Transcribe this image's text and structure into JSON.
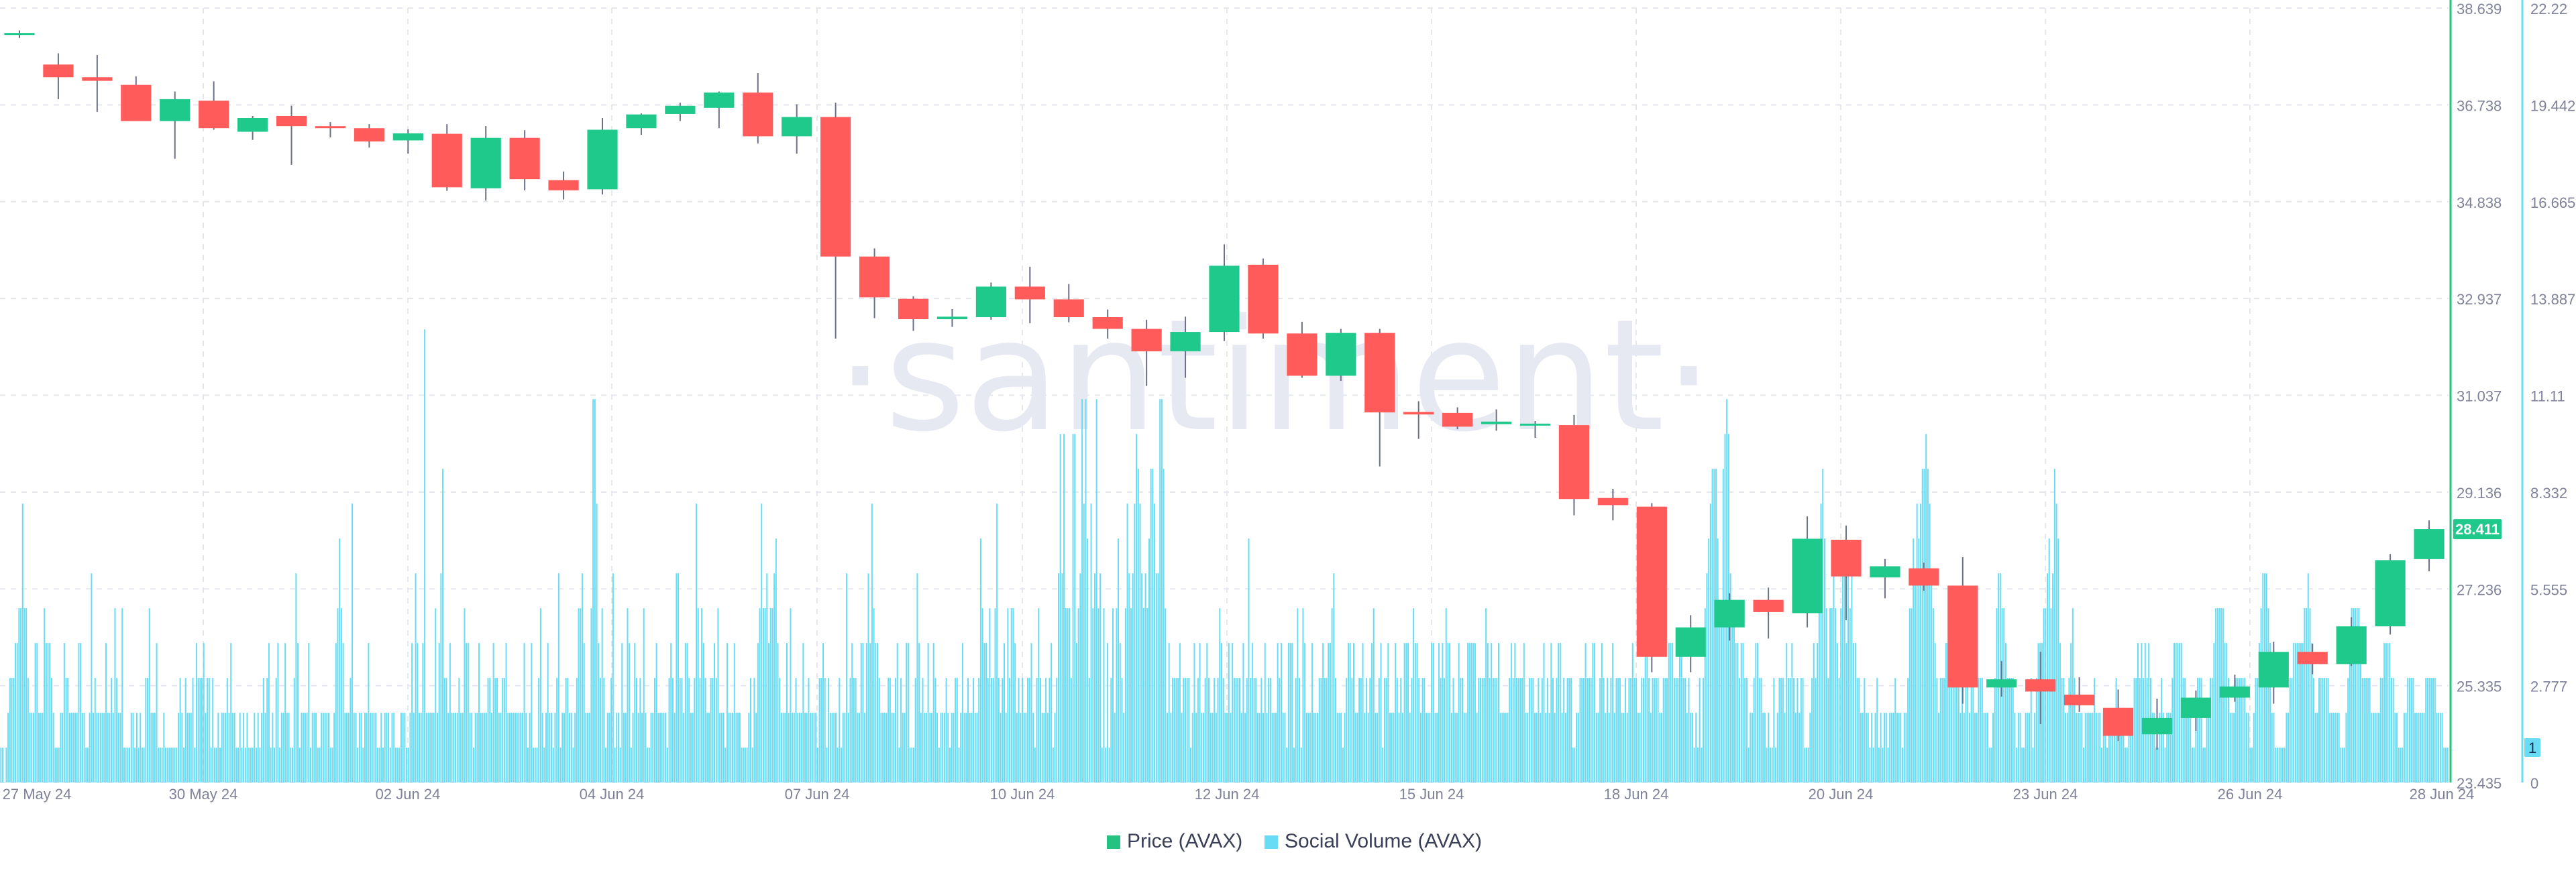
{
  "watermark": "·santiment·",
  "chart_data": {
    "type": "candlestick+bar",
    "price_axis": {
      "ticks": [
        "38.639",
        "36.738",
        "34.838",
        "32.937",
        "31.037",
        "29.136",
        "27.236",
        "25.335",
        "23.435"
      ],
      "min": 23.435,
      "max": 38.639,
      "color": "#26c281"
    },
    "volume_axis": {
      "ticks": [
        "22.22",
        "19.442",
        "16.665",
        "13.887",
        "11.11",
        "8.332",
        "5.555",
        "2.777",
        "0"
      ],
      "min": 0,
      "max": 22.22,
      "color": "#68dcf4"
    },
    "x_ticks": [
      "27 May 24",
      "30 May 24",
      "02 Jun 24",
      "04 Jun 24",
      "07 Jun 24",
      "10 Jun 24",
      "12 Jun 24",
      "15 Jun 24",
      "18 Jun 24",
      "20 Jun 24",
      "23 Jun 24",
      "26 Jun 24",
      "28 Jun 24"
    ],
    "current_price_label": "28.411",
    "current_volume_label": "1",
    "legend": [
      {
        "name": "Price (AVAX)",
        "color": "#26c281"
      },
      {
        "name": "Social Volume (AVAX)",
        "color": "#68dcf4"
      }
    ],
    "up_color": "#1fc98b",
    "down_color": "#ff5b5b",
    "candles": [
      {
        "o": 38.12,
        "h": 38.2,
        "l": 38.05,
        "c": 38.15
      },
      {
        "o": 37.53,
        "h": 37.75,
        "l": 36.85,
        "c": 37.28
      },
      {
        "o": 37.28,
        "h": 37.72,
        "l": 36.6,
        "c": 37.21
      },
      {
        "o": 37.13,
        "h": 37.3,
        "l": 36.55,
        "c": 36.42
      },
      {
        "o": 36.42,
        "h": 37.0,
        "l": 35.68,
        "c": 36.85
      },
      {
        "o": 36.82,
        "h": 37.2,
        "l": 36.25,
        "c": 36.28
      },
      {
        "o": 36.21,
        "h": 36.52,
        "l": 36.05,
        "c": 36.48
      },
      {
        "o": 36.52,
        "h": 36.72,
        "l": 35.56,
        "c": 36.32
      },
      {
        "o": 36.32,
        "h": 36.4,
        "l": 36.1,
        "c": 36.28
      },
      {
        "o": 36.28,
        "h": 36.36,
        "l": 35.9,
        "c": 36.02
      },
      {
        "o": 36.04,
        "h": 36.26,
        "l": 35.78,
        "c": 36.18
      },
      {
        "o": 36.17,
        "h": 36.36,
        "l": 35.05,
        "c": 35.12
      },
      {
        "o": 35.1,
        "h": 36.32,
        "l": 34.86,
        "c": 36.09
      },
      {
        "o": 36.09,
        "h": 36.24,
        "l": 35.06,
        "c": 35.28
      },
      {
        "o": 35.26,
        "h": 35.43,
        "l": 34.88,
        "c": 35.06
      },
      {
        "o": 35.08,
        "h": 36.48,
        "l": 34.98,
        "c": 36.25
      },
      {
        "o": 36.28,
        "h": 36.57,
        "l": 36.15,
        "c": 36.55
      },
      {
        "o": 36.56,
        "h": 36.78,
        "l": 36.42,
        "c": 36.72
      },
      {
        "o": 36.68,
        "h": 37.0,
        "l": 36.28,
        "c": 36.98
      },
      {
        "o": 36.98,
        "h": 37.36,
        "l": 35.98,
        "c": 36.12
      },
      {
        "o": 36.12,
        "h": 36.75,
        "l": 35.78,
        "c": 36.5
      },
      {
        "o": 36.5,
        "h": 36.78,
        "l": 32.15,
        "c": 33.76
      },
      {
        "o": 33.76,
        "h": 33.92,
        "l": 32.55,
        "c": 32.96
      },
      {
        "o": 32.93,
        "h": 32.98,
        "l": 32.3,
        "c": 32.53
      },
      {
        "o": 32.53,
        "h": 32.73,
        "l": 32.38,
        "c": 32.58
      },
      {
        "o": 32.57,
        "h": 33.25,
        "l": 32.52,
        "c": 33.17
      },
      {
        "o": 33.17,
        "h": 33.56,
        "l": 32.45,
        "c": 32.92
      },
      {
        "o": 32.92,
        "h": 33.22,
        "l": 32.47,
        "c": 32.57
      },
      {
        "o": 32.57,
        "h": 32.72,
        "l": 32.15,
        "c": 32.34
      },
      {
        "o": 32.34,
        "h": 32.52,
        "l": 31.22,
        "c": 31.9
      },
      {
        "o": 31.9,
        "h": 32.58,
        "l": 31.38,
        "c": 32.28
      },
      {
        "o": 32.28,
        "h": 34.0,
        "l": 32.1,
        "c": 33.58
      },
      {
        "o": 33.6,
        "h": 33.72,
        "l": 32.15,
        "c": 32.25
      },
      {
        "o": 32.25,
        "h": 32.48,
        "l": 31.38,
        "c": 31.42
      },
      {
        "o": 31.42,
        "h": 32.34,
        "l": 31.32,
        "c": 32.26
      },
      {
        "o": 32.26,
        "h": 32.34,
        "l": 29.64,
        "c": 30.7
      },
      {
        "o": 30.71,
        "h": 30.92,
        "l": 30.18,
        "c": 30.66
      },
      {
        "o": 30.69,
        "h": 30.8,
        "l": 30.37,
        "c": 30.42
      },
      {
        "o": 30.47,
        "h": 30.76,
        "l": 30.34,
        "c": 30.52
      },
      {
        "o": 30.45,
        "h": 30.53,
        "l": 30.2,
        "c": 30.48
      },
      {
        "o": 30.45,
        "h": 30.65,
        "l": 28.68,
        "c": 29.0
      },
      {
        "o": 29.02,
        "h": 29.2,
        "l": 28.58,
        "c": 28.88
      },
      {
        "o": 28.85,
        "h": 28.92,
        "l": 25.6,
        "c": 25.9
      },
      {
        "o": 25.9,
        "h": 26.72,
        "l": 25.6,
        "c": 26.48
      },
      {
        "o": 26.48,
        "h": 27.15,
        "l": 26.22,
        "c": 27.02
      },
      {
        "o": 27.02,
        "h": 27.26,
        "l": 26.26,
        "c": 26.78
      },
      {
        "o": 26.76,
        "h": 28.66,
        "l": 26.48,
        "c": 28.22
      },
      {
        "o": 28.2,
        "h": 28.48,
        "l": 26.62,
        "c": 27.48
      },
      {
        "o": 27.46,
        "h": 27.82,
        "l": 27.05,
        "c": 27.68
      },
      {
        "o": 27.64,
        "h": 27.75,
        "l": 27.2,
        "c": 27.3
      },
      {
        "o": 27.3,
        "h": 27.86,
        "l": 24.98,
        "c": 25.3
      },
      {
        "o": 25.3,
        "h": 25.82,
        "l": 25.12,
        "c": 25.46
      },
      {
        "o": 25.46,
        "h": 26.0,
        "l": 24.58,
        "c": 25.22
      },
      {
        "o": 25.16,
        "h": 25.5,
        "l": 24.82,
        "c": 24.95
      },
      {
        "o": 24.9,
        "h": 25.26,
        "l": 24.25,
        "c": 24.35
      },
      {
        "o": 24.38,
        "h": 25.08,
        "l": 24.08,
        "c": 24.7
      },
      {
        "o": 24.7,
        "h": 25.24,
        "l": 24.45,
        "c": 25.1
      },
      {
        "o": 25.1,
        "h": 25.55,
        "l": 25.02,
        "c": 25.32
      },
      {
        "o": 25.3,
        "h": 26.2,
        "l": 24.98,
        "c": 26.0
      },
      {
        "o": 26.0,
        "h": 26.16,
        "l": 25.56,
        "c": 25.76
      },
      {
        "o": 25.76,
        "h": 26.68,
        "l": 25.72,
        "c": 26.5
      },
      {
        "o": 26.5,
        "h": 27.92,
        "l": 26.34,
        "c": 27.8
      },
      {
        "o": 27.82,
        "h": 28.58,
        "l": 27.58,
        "c": 28.41
      }
    ],
    "social_volume": [
      1,
      1,
      0,
      1,
      2,
      3,
      3,
      3,
      4,
      4,
      5,
      5,
      8,
      5,
      5,
      3,
      2,
      2,
      2,
      4,
      4,
      2,
      2,
      2,
      5,
      4,
      4,
      4,
      3,
      2,
      1,
      1,
      1,
      2,
      2,
      4,
      3,
      3,
      2,
      2,
      2,
      2,
      2,
      4,
      4,
      2,
      2,
      1,
      1,
      2,
      6,
      2,
      3,
      2,
      2,
      2,
      2,
      2,
      4,
      2,
      2,
      3,
      2,
      5,
      3,
      2,
      2,
      5,
      1,
      1,
      1,
      1,
      2,
      2,
      1,
      2,
      1,
      2,
      1,
      1,
      3,
      3,
      5,
      2,
      2,
      2,
      4,
      1,
      1,
      1,
      2,
      1,
      1,
      1,
      1,
      1,
      1,
      1,
      2,
      3,
      2,
      1,
      3,
      2,
      2,
      2,
      3,
      1,
      4,
      3,
      3,
      3,
      4,
      2,
      3,
      3,
      1,
      3,
      1,
      1,
      2,
      1,
      2,
      2,
      2,
      3,
      2,
      4,
      2,
      2,
      1,
      1,
      2,
      1,
      2,
      1,
      2,
      1,
      1,
      1,
      2,
      1,
      2,
      1,
      2,
      3,
      2,
      3,
      4,
      1,
      2,
      1,
      3,
      4,
      1,
      2,
      2,
      4,
      2,
      2,
      1,
      1,
      3,
      6,
      4,
      1,
      2,
      2,
      2,
      2,
      4,
      1,
      2,
      2,
      2,
      1,
      1,
      2,
      2,
      2,
      2,
      2,
      1,
      1,
      2,
      4,
      5,
      7,
      5,
      4,
      2,
      2,
      2,
      3,
      8,
      2,
      2,
      1,
      2,
      2,
      1,
      2,
      2,
      4,
      2,
      2,
      2,
      2,
      1,
      1,
      2,
      1,
      2,
      2,
      2,
      1,
      2,
      2,
      1,
      1,
      1,
      2,
      2,
      2,
      1,
      1,
      2,
      4,
      2,
      6,
      4,
      2,
      2,
      4,
      13,
      2,
      2,
      2,
      2,
      2,
      5,
      2,
      4,
      6,
      9,
      3,
      3,
      2,
      4,
      2,
      2,
      2,
      2,
      3,
      2,
      2,
      5,
      4,
      4,
      2,
      2,
      1,
      2,
      2,
      4,
      2,
      2,
      2,
      2,
      3,
      3,
      2,
      4,
      3,
      3,
      2,
      2,
      3,
      3,
      4,
      2,
      2,
      2,
      2,
      2,
      2,
      2,
      2,
      2,
      4,
      2,
      1,
      2,
      4,
      1,
      1,
      1,
      3,
      5,
      2,
      1,
      2,
      4,
      2,
      2,
      1,
      2,
      3,
      6,
      1,
      2,
      2,
      3,
      3,
      2,
      2,
      1,
      2,
      3,
      5,
      5,
      6,
      4,
      2,
      2,
      2,
      5,
      11,
      11,
      8,
      4,
      3,
      5,
      3,
      1,
      2,
      2,
      3,
      6,
      1,
      2,
      2,
      1,
      4,
      2,
      2,
      5,
      4,
      1,
      2,
      4,
      3,
      2,
      3,
      2,
      5,
      2,
      1,
      1,
      2,
      2,
      3,
      4,
      2,
      2,
      2,
      2,
      2,
      1,
      3,
      4,
      3,
      2,
      6,
      6,
      3,
      3,
      2,
      4,
      4,
      3,
      2,
      2,
      3,
      8,
      5,
      3,
      5,
      4,
      3,
      2,
      2,
      3,
      3,
      4,
      3,
      5,
      2,
      2,
      2,
      1,
      4,
      2,
      2,
      2,
      4,
      2,
      2,
      2,
      1,
      1,
      1,
      1,
      2,
      3,
      1,
      3,
      2,
      4,
      5,
      8,
      5,
      5,
      6,
      4,
      5,
      5,
      6,
      7,
      4,
      3,
      2,
      2,
      2,
      4,
      2,
      5,
      2,
      2,
      3,
      2,
      2,
      2,
      4,
      2,
      2,
      3,
      2,
      2,
      2,
      2,
      1,
      3,
      3,
      4,
      3,
      1,
      3,
      2,
      2,
      2,
      2,
      1,
      3,
      1,
      2,
      2,
      6,
      2,
      3,
      4,
      3,
      3,
      2,
      2,
      4,
      4,
      2,
      4,
      6,
      4,
      8,
      5,
      4,
      4,
      3,
      2,
      2,
      2,
      2,
      3,
      3,
      2,
      2,
      3,
      4,
      1,
      3,
      2,
      2,
      4,
      4,
      1,
      1,
      1,
      3,
      6,
      4,
      2,
      3,
      2,
      2,
      4,
      2,
      2,
      4,
      3,
      2,
      1,
      2,
      2,
      2,
      3,
      2,
      1,
      2,
      2,
      3,
      3,
      1,
      2,
      4,
      2,
      2,
      3,
      2,
      2,
      3,
      2,
      2,
      3,
      7,
      5,
      4,
      4,
      3,
      5,
      3,
      3,
      5,
      8,
      3,
      2,
      3,
      4,
      2,
      5,
      3,
      5,
      5,
      4,
      2,
      3,
      2,
      3,
      2,
      2,
      3,
      3,
      4,
      2,
      1,
      3,
      5,
      3,
      2,
      2,
      3,
      2,
      3,
      4,
      1,
      2,
      3,
      6,
      10,
      6,
      10,
      5,
      5,
      5,
      3,
      10,
      10,
      4,
      5,
      6,
      11,
      8,
      11,
      7,
      3,
      8,
      5,
      6,
      11,
      5,
      6,
      1,
      5,
      1,
      4,
      1,
      3,
      5,
      2,
      5,
      7,
      4,
      3,
      2,
      5,
      8,
      6,
      5,
      6,
      8,
      10,
      9,
      8,
      6,
      5,
      6,
      5,
      7,
      9,
      9,
      8,
      6,
      6,
      11,
      11,
      9,
      5,
      2,
      4,
      2,
      3,
      3,
      3,
      3,
      4,
      2,
      3,
      3,
      3,
      3,
      1,
      2,
      4,
      2,
      3,
      4,
      2,
      2,
      3,
      4,
      3,
      2,
      2,
      3,
      2,
      3,
      5,
      4,
      3,
      2,
      2,
      4,
      2,
      4,
      3,
      3,
      3,
      3,
      2,
      4,
      2,
      3,
      7,
      3,
      4,
      3,
      3,
      2,
      2,
      3,
      2,
      4,
      2,
      3,
      3,
      2,
      2,
      2,
      4,
      3,
      4,
      2,
      2,
      1,
      4,
      4,
      4,
      1,
      3,
      5,
      3,
      1,
      5,
      4,
      2,
      2,
      2,
      4,
      2,
      2,
      2,
      3,
      3,
      4,
      3,
      3,
      4,
      4,
      5,
      6,
      3,
      2,
      2,
      2,
      1,
      2,
      3,
      4,
      4,
      3,
      4,
      2,
      2,
      3,
      3,
      4,
      2,
      3,
      2,
      3,
      4,
      5,
      2,
      2,
      3,
      4,
      1,
      3,
      3,
      4,
      2,
      2,
      2,
      4,
      3,
      2,
      3,
      2,
      4,
      4,
      4,
      2,
      3,
      5,
      4,
      4,
      3,
      2,
      3,
      3,
      2,
      2,
      2,
      4,
      4,
      2,
      2,
      4,
      3,
      4,
      3,
      5,
      4,
      4,
      2,
      3,
      2,
      2,
      4,
      3,
      3,
      2,
      2,
      4,
      4,
      4,
      4,
      4,
      2,
      3,
      3,
      3,
      3,
      5,
      4,
      3,
      4,
      3,
      3,
      3,
      4,
      2,
      2,
      2,
      2,
      2,
      3,
      4,
      3,
      4,
      3,
      3,
      3,
      3,
      4,
      2,
      2,
      3,
      3,
      3,
      2,
      2,
      3,
      2,
      3,
      4,
      2,
      3,
      2,
      4,
      3,
      2,
      3,
      4,
      4,
      2,
      3,
      2,
      3,
      3,
      3,
      1,
      1,
      2,
      2,
      3,
      3,
      3,
      4,
      3,
      3,
      3,
      4,
      4,
      2,
      2,
      3,
      4,
      3,
      2,
      3,
      2,
      3,
      4,
      2,
      3,
      3,
      3,
      2,
      2,
      3,
      2,
      3,
      3,
      4,
      3,
      3,
      2,
      2,
      3,
      3,
      4,
      4,
      3,
      2,
      3,
      3,
      3,
      3,
      2,
      2,
      3,
      3,
      3,
      4,
      4,
      4,
      3,
      3,
      3,
      4,
      4,
      3,
      3,
      2,
      3,
      2,
      2,
      1,
      2,
      1,
      3,
      1,
      3,
      5,
      6,
      7,
      8,
      9,
      9,
      9,
      7,
      5,
      5,
      9,
      10,
      11,
      10,
      6,
      5,
      5,
      4,
      4,
      3,
      4,
      4,
      3,
      3,
      1,
      2,
      2,
      3,
      4,
      4,
      3,
      3,
      2,
      2,
      1,
      2,
      1,
      1,
      3,
      1,
      2,
      3,
      3,
      3,
      2,
      4,
      3,
      3,
      4,
      3,
      2,
      3,
      2,
      3,
      3,
      1,
      1,
      1,
      2,
      3,
      4,
      3,
      4,
      5,
      8,
      9,
      7,
      5,
      3,
      5,
      5,
      6,
      5,
      4,
      3,
      5,
      6,
      6,
      4,
      6,
      5,
      6,
      4,
      4,
      3,
      3,
      2,
      2,
      3,
      2,
      2,
      1,
      2,
      1,
      2,
      3,
      1,
      2,
      1,
      2,
      2,
      1,
      2,
      2,
      2,
      3,
      2,
      2,
      2,
      1,
      2,
      2,
      3,
      5,
      5,
      7,
      6,
      8,
      7,
      8,
      9,
      9,
      10,
      9,
      8,
      6,
      5,
      4,
      3,
      2,
      3,
      3,
      3,
      4,
      4,
      5,
      5,
      5,
      4,
      4,
      3,
      2,
      3,
      2,
      3,
      3,
      2,
      3,
      3,
      2,
      2,
      3,
      3,
      3,
      2,
      2,
      2,
      1,
      1,
      2,
      3,
      5,
      6,
      6,
      5,
      5,
      4,
      3,
      3,
      3,
      3,
      2,
      1,
      2,
      2,
      1,
      1,
      2,
      2,
      2,
      3,
      1,
      2,
      3,
      4,
      4,
      4,
      5,
      5,
      6,
      7,
      5,
      6,
      9,
      8,
      7,
      4,
      3,
      3,
      2,
      2,
      3,
      4,
      5,
      3,
      2,
      2,
      2,
      2,
      1,
      2,
      2,
      2,
      2,
      2,
      3,
      2,
      2,
      2,
      1,
      2,
      2,
      1,
      2,
      2,
      2,
      2,
      3,
      2,
      2,
      2,
      2,
      1,
      1,
      2,
      2,
      2,
      3,
      3,
      4,
      3,
      4,
      3,
      4,
      3,
      4,
      3,
      2,
      2,
      1,
      1,
      2,
      3,
      2,
      1,
      2,
      2,
      2,
      3,
      4,
      4,
      4,
      4,
      4,
      3,
      3,
      2,
      2,
      2,
      1,
      1,
      2,
      3,
      3,
      3,
      1,
      1,
      2,
      2,
      3,
      3,
      4,
      5,
      5,
      5,
      5,
      5,
      4,
      4,
      3,
      2,
      2,
      2,
      3,
      3,
      3,
      3,
      3,
      3,
      2,
      2,
      1,
      1,
      2,
      3,
      3,
      4,
      5,
      6,
      6,
      6,
      5,
      4,
      2,
      2,
      1,
      1,
      1,
      1,
      1,
      1,
      2,
      2,
      3,
      3,
      4,
      4,
      4,
      4,
      4,
      4,
      5,
      5,
      6,
      5,
      4,
      3,
      2,
      2,
      3,
      3,
      3,
      3,
      3,
      3,
      2,
      2,
      2,
      2,
      2,
      2,
      1,
      1,
      1,
      2,
      3,
      4,
      5,
      5,
      5,
      5,
      5,
      4,
      3,
      3,
      3,
      3,
      3,
      2,
      2,
      2,
      2,
      2,
      3,
      3,
      4,
      4,
      4,
      4,
      3,
      3,
      2,
      2,
      1,
      1,
      1,
      2,
      2,
      3,
      3,
      3,
      3,
      2,
      2,
      2,
      2,
      2,
      2,
      3,
      3,
      3,
      3,
      3,
      3,
      2,
      2,
      2,
      2,
      1,
      1,
      1
    ]
  }
}
